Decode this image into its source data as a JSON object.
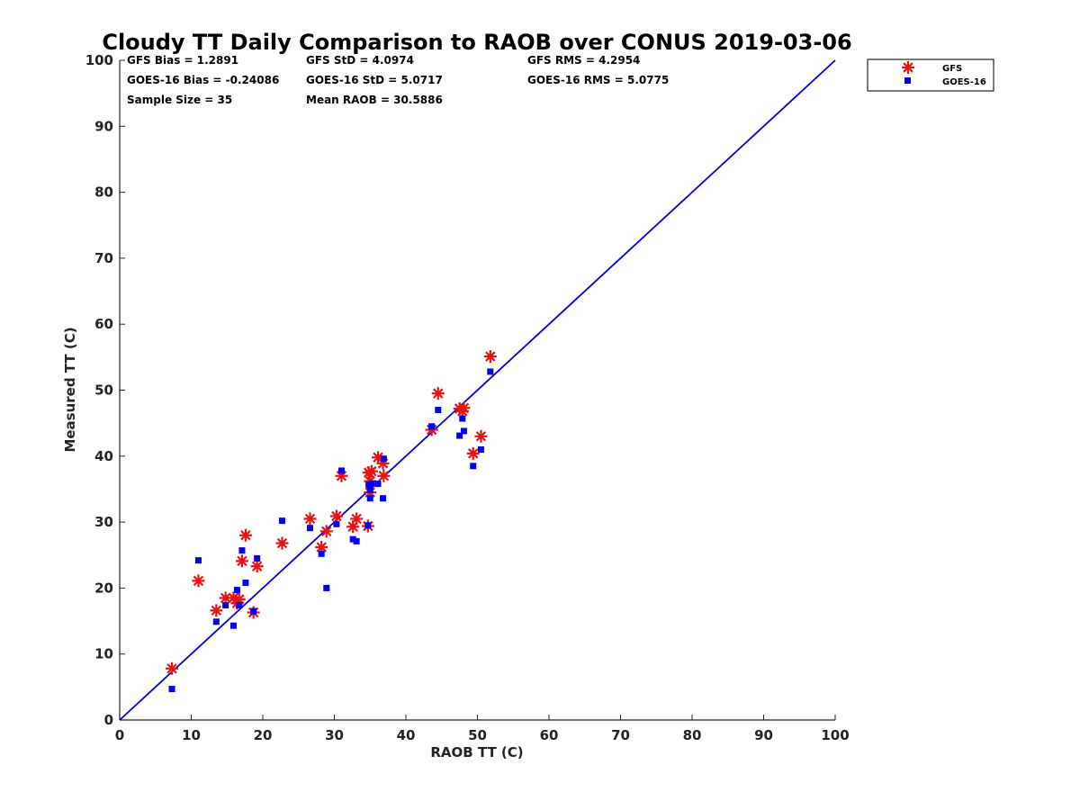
{
  "chart_data": {
    "type": "scatter",
    "title": "Cloudy TT Daily Comparison to RAOB over CONUS 2019-03-06",
    "xlabel": "RAOB TT (C)",
    "ylabel": "Measured TT (C)",
    "xlim": [
      0,
      100
    ],
    "ylim": [
      0,
      100
    ],
    "xticks": [
      "0",
      "10",
      "20",
      "30",
      "40",
      "50",
      "60",
      "70",
      "80",
      "90",
      "100"
    ],
    "yticks": [
      "0",
      "10",
      "20",
      "30",
      "40",
      "50",
      "60",
      "70",
      "80",
      "90",
      "100"
    ],
    "legend_position": "top-right outside",
    "stats": {
      "gfs_bias": "GFS Bias = 1.2891",
      "gfs_std": "GFS StD = 4.0974",
      "gfs_rms": "GFS RMS = 4.2954",
      "goes_bias": "GOES-16 Bias = -0.24086",
      "goes_std": "GOES-16 StD = 5.0717",
      "goes_rms": "GOES-16 RMS = 5.0775",
      "sample_size": "Sample Size = 35",
      "mean_raob": "Mean RAOB = 30.5886"
    },
    "reference_line": {
      "name": "1:1 line",
      "color": "#0000dd",
      "from": [
        0,
        0
      ],
      "to": [
        100,
        100
      ]
    },
    "series": [
      {
        "name": "GFS",
        "marker": "asterisk",
        "color": "#ee1111",
        "points": [
          [
            7.3,
            7.8
          ],
          [
            11.0,
            21.1
          ],
          [
            13.5,
            16.6
          ],
          [
            14.8,
            18.5
          ],
          [
            15.9,
            18.5
          ],
          [
            16.4,
            17.7
          ],
          [
            16.7,
            18.3
          ],
          [
            17.1,
            24.1
          ],
          [
            17.6,
            28.0
          ],
          [
            18.7,
            16.3
          ],
          [
            19.2,
            23.3
          ],
          [
            22.7,
            26.8
          ],
          [
            26.6,
            30.5
          ],
          [
            28.2,
            26.2
          ],
          [
            28.9,
            28.6
          ],
          [
            30.3,
            30.9
          ],
          [
            31.0,
            37.0
          ],
          [
            32.6,
            29.3
          ],
          [
            33.1,
            30.5
          ],
          [
            34.7,
            29.4
          ],
          [
            34.8,
            37.5
          ],
          [
            35.0,
            34.5
          ],
          [
            35.2,
            37.7
          ],
          [
            36.1,
            39.8
          ],
          [
            36.8,
            38.9
          ],
          [
            36.9,
            37.0
          ],
          [
            43.6,
            44.0
          ],
          [
            44.5,
            49.5
          ],
          [
            47.5,
            47.2
          ],
          [
            47.9,
            46.8
          ],
          [
            48.1,
            47.3
          ],
          [
            49.4,
            40.4
          ],
          [
            50.5,
            43.0
          ],
          [
            51.8,
            55.1
          ],
          [
            35.0,
            36.2
          ]
        ]
      },
      {
        "name": "GOES-16",
        "marker": "square",
        "color": "#0000ee",
        "points": [
          [
            7.3,
            4.7
          ],
          [
            11.0,
            24.2
          ],
          [
            13.5,
            14.9
          ],
          [
            14.8,
            17.4
          ],
          [
            15.9,
            14.3
          ],
          [
            16.4,
            19.7
          ],
          [
            16.7,
            17.4
          ],
          [
            17.1,
            25.7
          ],
          [
            17.6,
            20.8
          ],
          [
            18.7,
            16.5
          ],
          [
            19.2,
            24.5
          ],
          [
            22.7,
            30.2
          ],
          [
            26.6,
            29.1
          ],
          [
            28.2,
            25.2
          ],
          [
            28.9,
            20.0
          ],
          [
            30.3,
            29.7
          ],
          [
            31.0,
            37.8
          ],
          [
            32.6,
            27.4
          ],
          [
            33.1,
            27.1
          ],
          [
            34.7,
            29.5
          ],
          [
            34.8,
            35.7
          ],
          [
            35.0,
            33.6
          ],
          [
            35.2,
            35.8
          ],
          [
            36.1,
            35.8
          ],
          [
            36.8,
            33.6
          ],
          [
            36.9,
            39.6
          ],
          [
            43.6,
            44.5
          ],
          [
            44.5,
            47.0
          ],
          [
            47.5,
            43.1
          ],
          [
            47.9,
            45.7
          ],
          [
            48.1,
            43.8
          ],
          [
            49.4,
            38.5
          ],
          [
            50.5,
            41.0
          ],
          [
            51.8,
            52.8
          ],
          [
            35.0,
            34.9
          ]
        ]
      }
    ]
  }
}
